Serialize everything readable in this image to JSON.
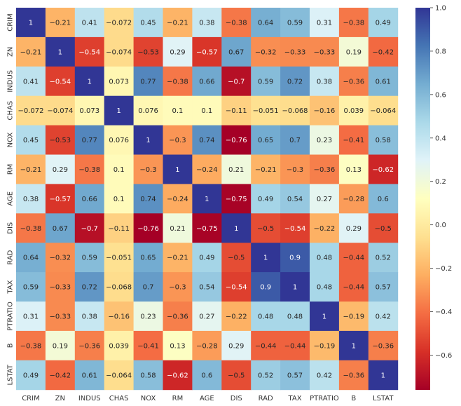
{
  "chart_data": {
    "type": "heatmap",
    "title": "",
    "xlabel": "",
    "ylabel": "",
    "labels": [
      "CRIM",
      "ZN",
      "INDUS",
      "CHAS",
      "NOX",
      "RM",
      "AGE",
      "DIS",
      "RAD",
      "TAX",
      "PTRATIO",
      "B",
      "LSTAT"
    ],
    "matrix": [
      [
        1,
        -0.21,
        0.41,
        -0.072,
        0.45,
        -0.21,
        0.38,
        -0.38,
        0.64,
        0.59,
        0.31,
        -0.38,
        0.49
      ],
      [
        -0.21,
        1,
        -0.54,
        -0.074,
        -0.53,
        0.29,
        -0.57,
        0.67,
        -0.32,
        -0.33,
        -0.33,
        0.19,
        -0.42
      ],
      [
        0.41,
        -0.54,
        1,
        0.073,
        0.77,
        -0.38,
        0.66,
        -0.7,
        0.59,
        0.72,
        0.38,
        -0.36,
        0.61
      ],
      [
        -0.072,
        -0.074,
        0.073,
        1,
        0.076,
        0.1,
        0.1,
        -0.11,
        -0.051,
        -0.068,
        -0.16,
        0.039,
        -0.064
      ],
      [
        0.45,
        -0.53,
        0.77,
        0.076,
        1,
        -0.3,
        0.74,
        -0.76,
        0.65,
        0.7,
        0.23,
        -0.41,
        0.58
      ],
      [
        -0.21,
        0.29,
        -0.38,
        0.1,
        -0.3,
        1,
        -0.24,
        0.21,
        -0.21,
        -0.3,
        -0.36,
        0.13,
        -0.62
      ],
      [
        0.38,
        -0.57,
        0.66,
        0.1,
        0.74,
        -0.24,
        1,
        -0.75,
        0.49,
        0.54,
        0.27,
        -0.28,
        0.6
      ],
      [
        -0.38,
        0.67,
        -0.7,
        -0.11,
        -0.76,
        0.21,
        -0.75,
        1,
        -0.5,
        -0.54,
        -0.22,
        0.29,
        -0.5
      ],
      [
        0.64,
        -0.32,
        0.59,
        -0.051,
        0.65,
        -0.21,
        0.49,
        -0.5,
        1,
        0.9,
        0.48,
        -0.44,
        0.52
      ],
      [
        0.59,
        -0.33,
        0.72,
        -0.068,
        0.7,
        -0.3,
        0.54,
        -0.54,
        0.9,
        1,
        0.48,
        -0.44,
        0.57
      ],
      [
        0.31,
        -0.33,
        0.38,
        -0.16,
        0.23,
        -0.36,
        0.27,
        -0.22,
        0.48,
        0.48,
        1,
        -0.19,
        0.42
      ],
      [
        -0.38,
        0.19,
        -0.36,
        0.039,
        -0.41,
        0.13,
        -0.28,
        0.29,
        -0.44,
        -0.44,
        -0.19,
        1,
        -0.36
      ],
      [
        0.49,
        -0.42,
        0.61,
        -0.064,
        0.58,
        -0.62,
        0.6,
        -0.5,
        0.52,
        0.57,
        0.42,
        -0.36,
        1
      ]
    ],
    "colormap": "RdYlBu",
    "vmin": -0.76,
    "vmax": 1,
    "colorbar_ticks": [
      "1.0",
      "0.8",
      "0.6",
      "0.4",
      "0.2",
      "0.0",
      "−0.2",
      "−0.4",
      "−0.6"
    ],
    "colorbar_tick_values": [
      1.0,
      0.8,
      0.6,
      0.4,
      0.2,
      0.0,
      -0.2,
      -0.4,
      -0.6
    ],
    "annotations": true,
    "grid": false
  }
}
